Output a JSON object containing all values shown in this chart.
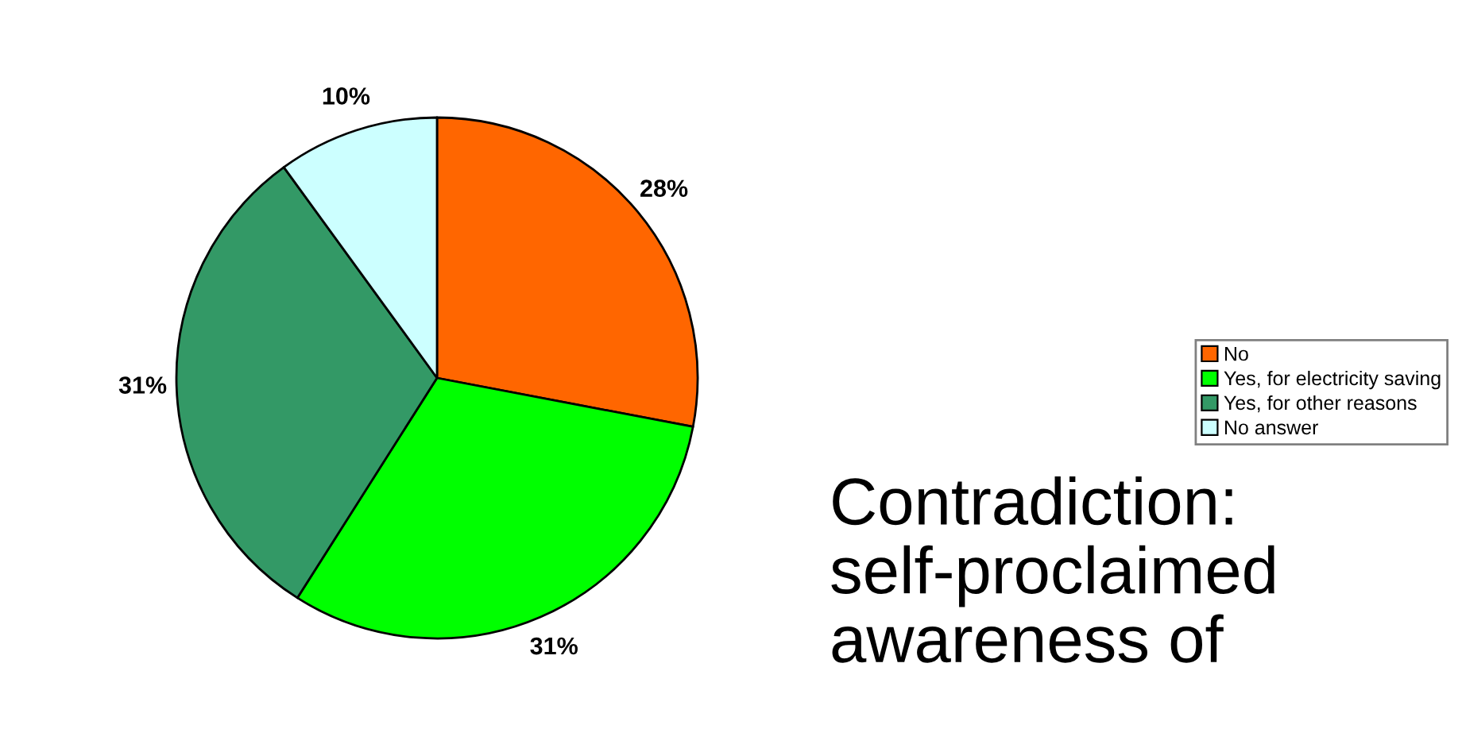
{
  "chart_data": {
    "type": "pie",
    "categories": [
      "No",
      "Yes, for electricity saving",
      "Yes, for other reasons",
      "No answer"
    ],
    "values": [
      28,
      31,
      31,
      10
    ],
    "colors": [
      "#ff6600",
      "#00ff00",
      "#339966",
      "#ccffff"
    ],
    "value_labels": [
      "28%",
      "31%",
      "31%",
      "10%"
    ],
    "legend": "right",
    "annotations": [
      "Contradiction: self-proclaimed awareness of"
    ]
  }
}
